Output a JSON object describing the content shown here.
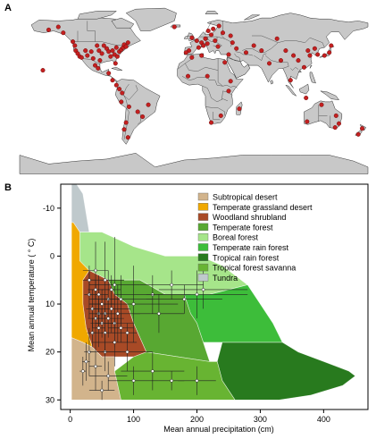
{
  "panels": {
    "a_label": "A",
    "b_label": "B"
  },
  "map": {
    "ocean_color": "#ffffff",
    "land_color": "#c8c8c8",
    "border_color": "#555555",
    "point_color": "#c42020",
    "sites": [
      [
        -150,
        61
      ],
      [
        -140,
        64
      ],
      [
        -135,
        58
      ],
      [
        -125,
        49
      ],
      [
        -123,
        45
      ],
      [
        -122,
        40
      ],
      [
        -120,
        37
      ],
      [
        -118,
        34
      ],
      [
        -116,
        33
      ],
      [
        -112,
        40
      ],
      [
        -110,
        35
      ],
      [
        -106,
        39
      ],
      [
        -104,
        32
      ],
      [
        -100,
        45
      ],
      [
        -98,
        40
      ],
      [
        -97,
        30
      ],
      [
        -95,
        37
      ],
      [
        -93,
        45
      ],
      [
        -90,
        42
      ],
      [
        -88,
        39
      ],
      [
        -86,
        34
      ],
      [
        -84,
        40
      ],
      [
        -82,
        36
      ],
      [
        -80,
        43
      ],
      [
        -79,
        34
      ],
      [
        -77,
        39
      ],
      [
        -75,
        41
      ],
      [
        -73,
        43
      ],
      [
        -72,
        46
      ],
      [
        -70,
        44
      ],
      [
        -68,
        48
      ],
      [
        -81,
        27
      ],
      [
        -99,
        22
      ],
      [
        -102,
        25
      ],
      [
        -88,
        17
      ],
      [
        -84,
        10
      ],
      [
        -80,
        5
      ],
      [
        -77,
        1
      ],
      [
        -74,
        -3
      ],
      [
        -75,
        -12
      ],
      [
        -67,
        -17
      ],
      [
        -58,
        -22
      ],
      [
        -53,
        -27
      ],
      [
        -70,
        -33
      ],
      [
        -72,
        -40
      ],
      [
        -68,
        -48
      ],
      [
        -47,
        -15
      ],
      [
        -2,
        53
      ],
      [
        3,
        50
      ],
      [
        8,
        48
      ],
      [
        12,
        52
      ],
      [
        15,
        60
      ],
      [
        18,
        56
      ],
      [
        22,
        50
      ],
      [
        25,
        44
      ],
      [
        5,
        43
      ],
      [
        -5,
        40
      ],
      [
        -8,
        38
      ],
      [
        10,
        45
      ],
      [
        14,
        47
      ],
      [
        20,
        62
      ],
      [
        26,
        65
      ],
      [
        -20,
        64
      ],
      [
        30,
        58
      ],
      [
        38,
        55
      ],
      [
        40,
        48
      ],
      [
        44,
        42
      ],
      [
        36,
        36
      ],
      [
        8,
        35
      ],
      [
        -2,
        33
      ],
      [
        32,
        28
      ],
      [
        14,
        14
      ],
      [
        -6,
        14
      ],
      [
        38,
        9
      ],
      [
        36,
        -1
      ],
      [
        28,
        -26
      ],
      [
        18,
        -33
      ],
      [
        47,
        -19
      ],
      [
        54,
        38
      ],
      [
        62,
        45
      ],
      [
        70,
        40
      ],
      [
        78,
        27
      ],
      [
        90,
        30
      ],
      [
        95,
        40
      ],
      [
        103,
        35
      ],
      [
        108,
        30
      ],
      [
        114,
        23
      ],
      [
        120,
        35
      ],
      [
        118,
        40
      ],
      [
        125,
        42
      ],
      [
        128,
        36
      ],
      [
        135,
        35
      ],
      [
        140,
        38
      ],
      [
        142,
        45
      ],
      [
        86,
        52
      ],
      [
        100,
        10
      ],
      [
        116,
        -8
      ],
      [
        132,
        -15
      ],
      [
        147,
        -26
      ],
      [
        150,
        -34
      ],
      [
        146,
        -38
      ],
      [
        117,
        -32
      ],
      [
        174,
        -39
      ],
      [
        170,
        -45
      ],
      [
        -156,
        20
      ]
    ]
  },
  "chart_data": {
    "type": "scatter",
    "xlabel": "Mean annual precipitation (cm)",
    "ylabel": "Mean annual temperature ( ° C)",
    "xlim": [
      -15,
      470
    ],
    "ylim": [
      -15,
      32
    ],
    "y_inverted": true,
    "xticks": [
      0,
      100,
      200,
      300,
      400
    ],
    "yticks": [
      -10,
      0,
      10,
      20,
      30
    ],
    "legend": {
      "position": "top-right",
      "entries": [
        {
          "label": "Subtropical desert",
          "color": "#d2b48c"
        },
        {
          "label": "Temperate grassland desert",
          "color": "#f0a800"
        },
        {
          "label": "Woodland shrubland",
          "color": "#a84a26"
        },
        {
          "label": "Temperate forest",
          "color": "#58a832"
        },
        {
          "label": "Boreal forest",
          "color": "#a6e58a"
        },
        {
          "label": "Temperate rain forest",
          "color": "#3dbd3a"
        },
        {
          "label": "Tropical rain forest",
          "color": "#287a1e"
        },
        {
          "label": "Tropical forest savanna",
          "color": "#68b432"
        },
        {
          "label": "Tundra",
          "color": "#bfc9cc"
        }
      ]
    },
    "biomes": [
      {
        "name": "Tundra",
        "color": "#bfc9cc",
        "polygon": [
          [
            2,
            -15
          ],
          [
            10,
            -15
          ],
          [
            20,
            -13
          ],
          [
            30,
            -5
          ],
          [
            15,
            -5
          ],
          [
            5,
            -7
          ],
          [
            2,
            -7
          ]
        ]
      },
      {
        "name": "Boreal forest",
        "color": "#a6e58a",
        "polygon": [
          [
            15,
            -5
          ],
          [
            30,
            -5
          ],
          [
            50,
            -5
          ],
          [
            100,
            -2
          ],
          [
            150,
            0
          ],
          [
            205,
            0
          ],
          [
            240,
            2
          ],
          [
            280,
            6
          ],
          [
            220,
            8
          ],
          [
            180,
            8
          ],
          [
            150,
            8
          ],
          [
            110,
            5
          ],
          [
            60,
            5
          ],
          [
            30,
            3
          ],
          [
            15,
            1
          ]
        ]
      },
      {
        "name": "Temperate rain forest",
        "color": "#3dbd3a",
        "polygon": [
          [
            180,
            8
          ],
          [
            220,
            8
          ],
          [
            280,
            6
          ],
          [
            300,
            10
          ],
          [
            320,
            14
          ],
          [
            335,
            18
          ],
          [
            300,
            18
          ],
          [
            240,
            18
          ],
          [
            210,
            18
          ],
          [
            200,
            14
          ],
          [
            190,
            12
          ]
        ]
      },
      {
        "name": "Temperate forest",
        "color": "#58a832",
        "polygon": [
          [
            60,
            5
          ],
          [
            110,
            5
          ],
          [
            150,
            8
          ],
          [
            180,
            8
          ],
          [
            190,
            12
          ],
          [
            200,
            14
          ],
          [
            210,
            18
          ],
          [
            220,
            22
          ],
          [
            120,
            20
          ],
          [
            110,
            17
          ],
          [
            100,
            14
          ],
          [
            90,
            10
          ],
          [
            70,
            8
          ]
        ]
      },
      {
        "name": "Tropical rain forest",
        "color": "#287a1e",
        "polygon": [
          [
            240,
            18
          ],
          [
            300,
            18
          ],
          [
            335,
            18
          ],
          [
            360,
            20
          ],
          [
            400,
            22
          ],
          [
            440,
            24
          ],
          [
            450,
            25
          ],
          [
            430,
            27
          ],
          [
            380,
            29
          ],
          [
            330,
            30
          ],
          [
            260,
            30
          ],
          [
            240,
            26
          ],
          [
            232,
            22
          ]
        ]
      },
      {
        "name": "Tropical forest savanna",
        "color": "#68b432",
        "polygon": [
          [
            120,
            20
          ],
          [
            220,
            22
          ],
          [
            232,
            22
          ],
          [
            240,
            26
          ],
          [
            260,
            30
          ],
          [
            180,
            30
          ],
          [
            80,
            30
          ],
          [
            70,
            24
          ],
          [
            100,
            21
          ]
        ]
      },
      {
        "name": "Woodland shrubland",
        "color": "#a84a26",
        "polygon": [
          [
            20,
            5
          ],
          [
            30,
            3
          ],
          [
            60,
            5
          ],
          [
            70,
            8
          ],
          [
            90,
            10
          ],
          [
            100,
            14
          ],
          [
            110,
            17
          ],
          [
            120,
            20
          ],
          [
            100,
            21
          ],
          [
            70,
            21
          ],
          [
            50,
            21
          ],
          [
            35,
            19
          ],
          [
            25,
            15
          ],
          [
            20,
            10
          ]
        ]
      },
      {
        "name": "Temperate grassland desert",
        "color": "#f0a800",
        "polygon": [
          [
            2,
            -7
          ],
          [
            5,
            -7
          ],
          [
            15,
            -5
          ],
          [
            15,
            1
          ],
          [
            30,
            3
          ],
          [
            20,
            5
          ],
          [
            20,
            10
          ],
          [
            25,
            15
          ],
          [
            35,
            19
          ],
          [
            20,
            18
          ],
          [
            2,
            17
          ]
        ]
      },
      {
        "name": "Subtropical desert",
        "color": "#d2b48c",
        "polygon": [
          [
            2,
            17
          ],
          [
            20,
            18
          ],
          [
            35,
            19
          ],
          [
            50,
            21
          ],
          [
            70,
            21
          ],
          [
            70,
            24
          ],
          [
            80,
            30
          ],
          [
            2,
            30
          ]
        ]
      }
    ],
    "points": [
      {
        "x": 40,
        "y": 3,
        "xerr": 20,
        "yerr": 6
      },
      {
        "x": 55,
        "y": 5,
        "xerr": 30,
        "yerr": 8
      },
      {
        "x": 70,
        "y": 6,
        "xerr": 40,
        "yerr": 10
      },
      {
        "x": 30,
        "y": 8,
        "xerr": 8,
        "yerr": 5
      },
      {
        "x": 45,
        "y": 8,
        "xerr": 15,
        "yerr": 4
      },
      {
        "x": 60,
        "y": 9,
        "xerr": 25,
        "yerr": 6
      },
      {
        "x": 80,
        "y": 9,
        "xerr": 50,
        "yerr": 5
      },
      {
        "x": 100,
        "y": 10,
        "xerr": 70,
        "yerr": 8
      },
      {
        "x": 50,
        "y": 10,
        "xerr": 20,
        "yerr": 3
      },
      {
        "x": 35,
        "y": 11,
        "xerr": 10,
        "yerr": 4
      },
      {
        "x": 65,
        "y": 11,
        "xerr": 30,
        "yerr": 5
      },
      {
        "x": 45,
        "y": 12,
        "xerr": 15,
        "yerr": 3
      },
      {
        "x": 55,
        "y": 12,
        "xerr": 20,
        "yerr": 4
      },
      {
        "x": 75,
        "y": 12,
        "xerr": 35,
        "yerr": 6
      },
      {
        "x": 40,
        "y": 13,
        "xerr": 12,
        "yerr": 5
      },
      {
        "x": 60,
        "y": 13,
        "xerr": 25,
        "yerr": 4
      },
      {
        "x": 50,
        "y": 14,
        "xerr": 18,
        "yerr": 3
      },
      {
        "x": 70,
        "y": 14,
        "xerr": 30,
        "yerr": 5
      },
      {
        "x": 45,
        "y": 15,
        "xerr": 10,
        "yerr": 4
      },
      {
        "x": 35,
        "y": 16,
        "xerr": 8,
        "yerr": 3
      },
      {
        "x": 55,
        "y": 16,
        "xerr": 20,
        "yerr": 4
      },
      {
        "x": 130,
        "y": 8,
        "xerr": 60,
        "yerr": 4
      },
      {
        "x": 160,
        "y": 6,
        "xerr": 50,
        "yerr": 3
      },
      {
        "x": 200,
        "y": 8,
        "xerr": 80,
        "yerr": 5
      },
      {
        "x": 140,
        "y": 12,
        "xerr": 40,
        "yerr": 4
      },
      {
        "x": 180,
        "y": 9,
        "xerr": 60,
        "yerr": 3
      },
      {
        "x": 210,
        "y": 7,
        "xerr": 70,
        "yerr": 4
      },
      {
        "x": 30,
        "y": 20,
        "xerr": 8,
        "yerr": 5
      },
      {
        "x": 25,
        "y": 22,
        "xerr": 6,
        "yerr": 4
      },
      {
        "x": 40,
        "y": 23,
        "xerr": 10,
        "yerr": 5
      },
      {
        "x": 20,
        "y": 24,
        "xerr": 5,
        "yerr": 3
      },
      {
        "x": 55,
        "y": 20,
        "xerr": 25,
        "yerr": 4
      },
      {
        "x": 70,
        "y": 18,
        "xerr": 35,
        "yerr": 5
      },
      {
        "x": 90,
        "y": 20,
        "xerr": 40,
        "yerr": 4
      },
      {
        "x": 60,
        "y": 25,
        "xerr": 30,
        "yerr": 3
      },
      {
        "x": 100,
        "y": 26,
        "xerr": 40,
        "yerr": 3
      },
      {
        "x": 130,
        "y": 24,
        "xerr": 50,
        "yerr": 4
      },
      {
        "x": 160,
        "y": 26,
        "xerr": 20,
        "yerr": 2
      },
      {
        "x": 200,
        "y": 26,
        "xerr": 30,
        "yerr": 3
      },
      {
        "x": 50,
        "y": 28,
        "xerr": 20,
        "yerr": 2
      },
      {
        "x": 80,
        "y": 15,
        "xerr": 20,
        "yerr": 3
      },
      {
        "x": 90,
        "y": 16,
        "xerr": 15,
        "yerr": 2
      },
      {
        "x": 30,
        "y": 5,
        "xerr": 10,
        "yerr": 3
      },
      {
        "x": 40,
        "y": 7,
        "xerr": 12,
        "yerr": 2
      },
      {
        "x": 65,
        "y": 7,
        "xerr": 15,
        "yerr": 3
      }
    ]
  }
}
